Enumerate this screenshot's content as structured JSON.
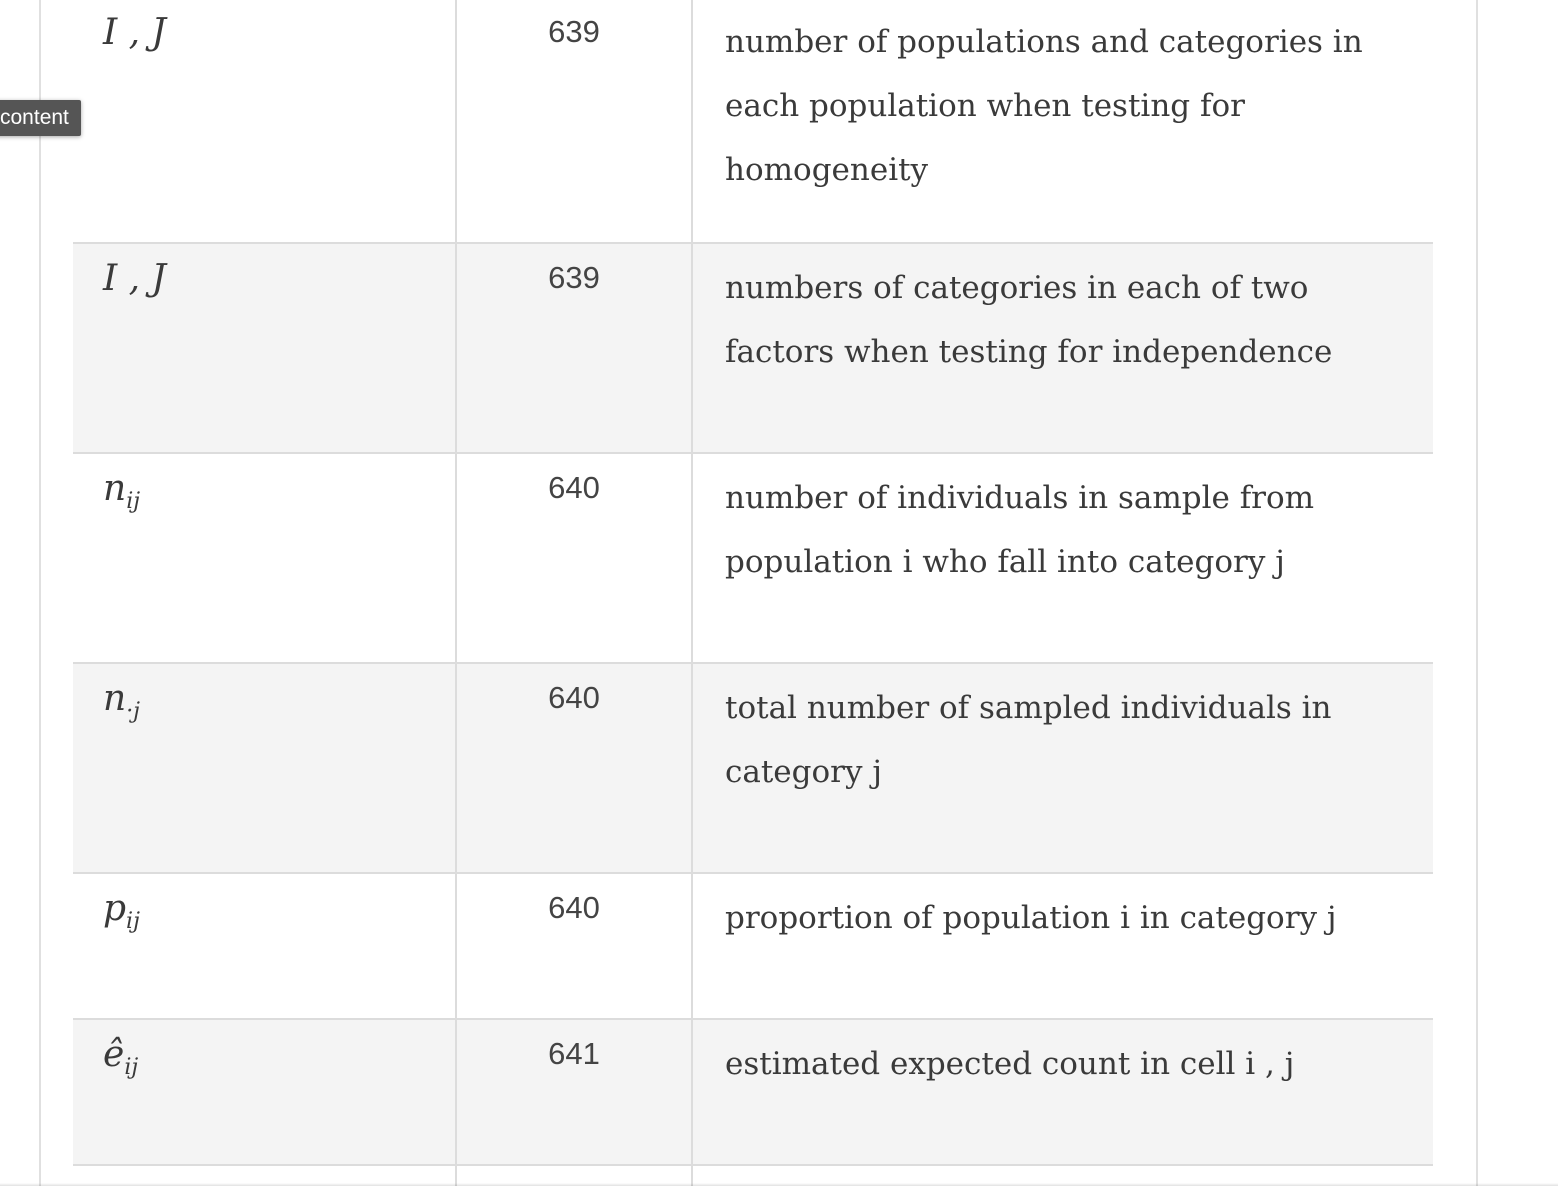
{
  "tooltip": {
    "text": "content"
  },
  "rows": [
    {
      "symbol": "I , J",
      "page": "639",
      "description": "number of populations and categories in each population when testing for homogeneity"
    },
    {
      "symbol": "I , J",
      "page": "639",
      "description": "numbers of categories in each of two factors when testing for independence"
    },
    {
      "symbol_base": "n",
      "symbol_sub": "ij",
      "page": "640",
      "description": "number of individuals in sample from population  i  who fall into category  j"
    },
    {
      "symbol_base": "n",
      "symbol_sub": "·j",
      "page": "640",
      "description": "total number of sampled individuals in category  j"
    },
    {
      "symbol_base": "p",
      "symbol_sub": "ij",
      "page": "640",
      "description": "proportion of population  i  in category  j"
    },
    {
      "symbol_base": "ê",
      "symbol_sub": "ij",
      "page": "641",
      "description": "estimated expected count in cell  i , j"
    }
  ]
}
